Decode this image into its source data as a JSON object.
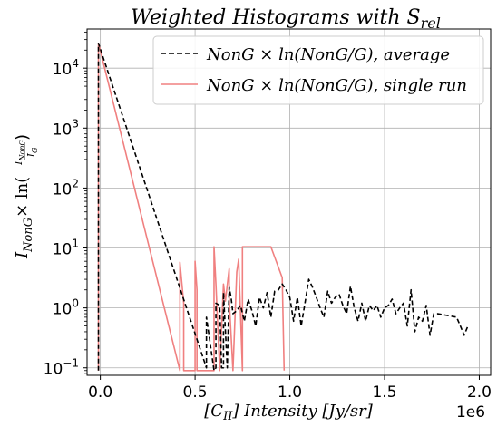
{
  "chart_data": {
    "type": "line",
    "title": "Weighted Histograms with S_rel",
    "title_main": "Weighted Histograms with ",
    "title_sym": "S",
    "title_sub": "rel",
    "xlabel_sym": "[C",
    "xlabel_sub": "II",
    "xlabel_rest": "] Intensity [Jy/sr]",
    "ylabel_parts": {
      "I": "I",
      "sub_nong": "NonG",
      "times": "× ln(",
      "frac_num": "I",
      "frac_num_sub": "NonG",
      "frac_den": "I",
      "frac_den_sub": "G",
      "close": ")"
    },
    "x_offset_label": "1e6",
    "x_scale": 1000000,
    "xlim": [
      -0.07,
      2.06
    ],
    "ylim": [
      0.075,
      45000
    ],
    "yscale": "log",
    "grid": true,
    "legend_position": "upper right",
    "x_ticks": [
      0.0,
      0.5,
      1.0,
      1.5,
      2.0
    ],
    "x_tick_labels": [
      "0.0",
      "0.5",
      "1.0",
      "1.5",
      "2.0"
    ],
    "y_ticks": [
      0.1,
      1,
      10,
      100,
      1000,
      10000
    ],
    "y_tick_labels": [
      {
        "base": "10",
        "exp": "−1"
      },
      {
        "base": "10",
        "exp": "0"
      },
      {
        "base": "10",
        "exp": "1"
      },
      {
        "base": "10",
        "exp": "2"
      },
      {
        "base": "10",
        "exp": "3"
      },
      {
        "base": "10",
        "exp": "4"
      }
    ],
    "series": [
      {
        "name": "NonG × ln(NonG/G), average",
        "color": "#000000",
        "style": "dashed",
        "x": [
          -0.01,
          -0.01,
          0.56,
          0.56,
          0.6,
          0.61,
          0.61,
          0.63,
          0.64,
          0.65,
          0.65,
          0.67,
          0.68,
          0.69,
          0.7,
          0.72,
          0.74,
          0.76,
          0.78,
          0.8,
          0.82,
          0.84,
          0.86,
          0.88,
          0.9,
          0.92,
          0.94,
          0.96,
          0.98,
          1.0,
          1.02,
          1.04,
          1.06,
          1.08,
          1.1,
          1.12,
          1.14,
          1.16,
          1.18,
          1.2,
          1.22,
          1.24,
          1.26,
          1.28,
          1.3,
          1.32,
          1.34,
          1.36,
          1.38,
          1.4,
          1.42,
          1.44,
          1.46,
          1.48,
          1.5,
          1.52,
          1.54,
          1.56,
          1.58,
          1.6,
          1.62,
          1.64,
          1.66,
          1.68,
          1.7,
          1.72,
          1.74,
          1.76,
          1.78,
          1.88,
          1.9,
          1.92,
          1.94
        ],
        "y": [
          0.09,
          26000,
          0.1,
          0.7,
          0.09,
          0.1,
          1.2,
          1.1,
          0.1,
          0.1,
          1.8,
          0.1,
          2.2,
          1.5,
          0.8,
          0.9,
          1.1,
          0.6,
          1.4,
          0.9,
          0.5,
          1.5,
          1.0,
          1.8,
          0.7,
          1.9,
          2.0,
          2.5,
          2.0,
          1.5,
          0.6,
          1.5,
          0.5,
          1.2,
          3.0,
          2.2,
          1.5,
          1.0,
          0.7,
          1.9,
          1.2,
          1.5,
          1.7,
          1.1,
          0.8,
          2.3,
          1.0,
          0.6,
          1.2,
          0.6,
          1.1,
          0.9,
          1.1,
          0.7,
          1.0,
          1.1,
          1.4,
          0.8,
          1.0,
          1.2,
          0.5,
          2.0,
          0.4,
          0.7,
          0.6,
          1.1,
          0.35,
          0.8,
          0.8,
          0.7,
          0.5,
          0.35,
          0.5
        ]
      },
      {
        "name": "NonG × ln(NonG/G), single run",
        "color": "#f08080",
        "style": "solid",
        "x": [
          -0.01,
          -0.01,
          0.42,
          0.42,
          0.44,
          0.44,
          0.5,
          0.5,
          0.51,
          0.51,
          0.6,
          0.6,
          0.61,
          0.63,
          0.63,
          0.65,
          0.66,
          0.68,
          0.68,
          0.7,
          0.72,
          0.73,
          0.75,
          0.75,
          0.9,
          0.9,
          0.96,
          0.97
        ],
        "y": [
          0.09,
          26000,
          0.09,
          5.8,
          1.2,
          0.09,
          0.09,
          6.0,
          2.0,
          0.09,
          0.09,
          10.5,
          2.5,
          0.09,
          0.09,
          2.5,
          1.3,
          4.5,
          1.4,
          0.09,
          4.0,
          6.5,
          0.09,
          10.5,
          10.5,
          10.5,
          3.2,
          0.09
        ]
      }
    ]
  }
}
